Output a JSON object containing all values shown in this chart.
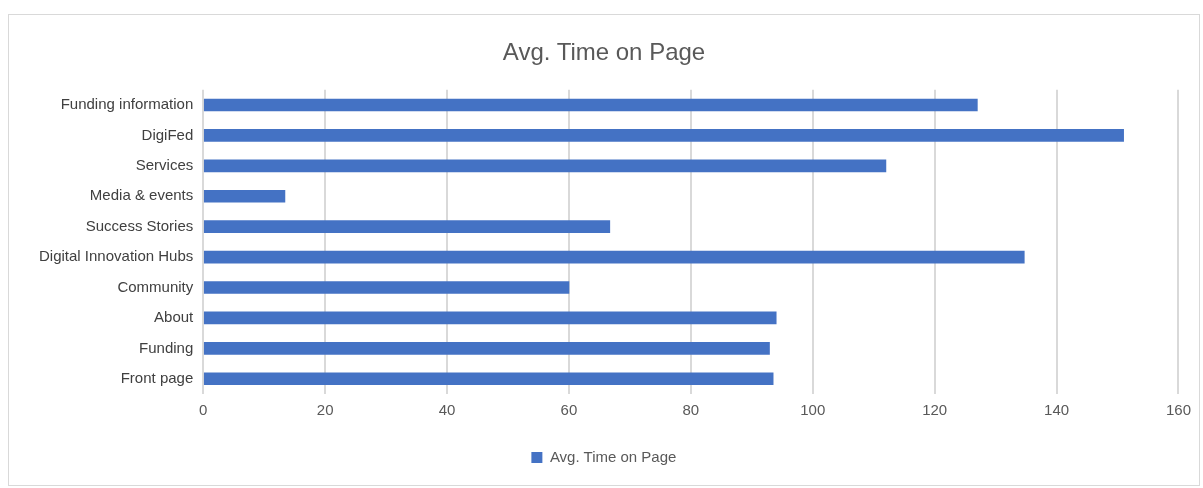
{
  "chart_data": {
    "type": "bar",
    "orientation": "horizontal",
    "title": "Avg. Time on Page",
    "categories": [
      "Funding information",
      "DigiFed",
      "Services",
      "Media & events",
      "Success Stories",
      "Digital Innovation Hubs",
      "Community",
      "About",
      "Funding",
      "Front page"
    ],
    "series": [
      {
        "name": "Avg. Time on Page",
        "color": "#4472c4",
        "values": [
          127,
          151,
          112,
          13.4,
          66.7,
          134.7,
          60,
          94,
          92.9,
          93.5
        ]
      }
    ],
    "xlim": [
      0,
      160
    ],
    "xticks": [
      0,
      20,
      40,
      60,
      80,
      100,
      120,
      140,
      160
    ],
    "grid": "x",
    "legend": "bottom"
  }
}
